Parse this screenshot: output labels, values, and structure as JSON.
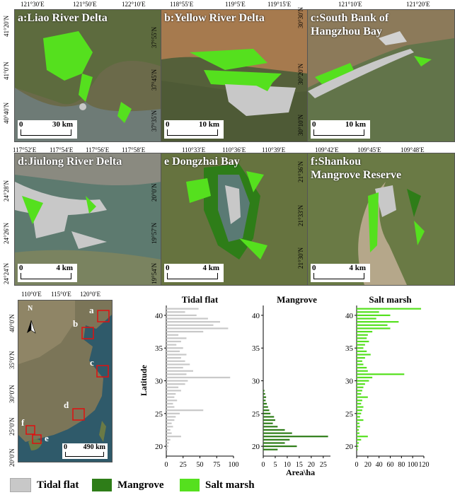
{
  "panels": [
    {
      "title": "a:Liao River Delta",
      "lon": [
        "121°30′E",
        "121°50′E",
        "122°10′E"
      ],
      "lat": [
        "41°20′N",
        "41°0′N",
        "40°40′N"
      ],
      "scale": [
        "0",
        "30 km"
      ]
    },
    {
      "title": "b:Yellow River Delta",
      "lon": [
        "118°55′E",
        "119°5′E",
        "119°15′E"
      ],
      "lat": [
        "37°55′N",
        "37°45′N",
        "37°35′N"
      ],
      "scale": [
        "0",
        "10 km"
      ]
    },
    {
      "title": "c:South Bank of\nHangzhou Bay",
      "lon": [
        "121°10′E",
        "121°20′E"
      ],
      "lat": [
        "30°30′N",
        "30°20′N",
        "30°10′N"
      ],
      "scale": [
        "0",
        "10 km"
      ]
    },
    {
      "title": "d:Jiulong River Delta",
      "lon": [
        "117°52′E",
        "117°54′E",
        "117°56′E",
        "117°58′E"
      ],
      "lat": [
        "24°28′N",
        "24°26′N",
        "24°24′N"
      ],
      "scale": [
        "0",
        "4 km"
      ]
    },
    {
      "title": "e Dongzhai Bay",
      "lon": [
        "110°33′E",
        "110°36′E",
        "110°39′E"
      ],
      "lat": [
        "20°0′N",
        "19°57′N",
        "19°54′N"
      ],
      "scale": [
        "0",
        "4 km"
      ]
    },
    {
      "title": "f:Shankou\nMangrove Reserve",
      "lon": [
        "109°42′E",
        "109°45′E",
        "109°48′E"
      ],
      "lat": [
        "21°36′N",
        "21°33′N",
        "21°30′N"
      ],
      "scale": [
        "0",
        "4 km"
      ]
    }
  ],
  "overview": {
    "lon": [
      "110°0′E",
      "115°0′E",
      "120°0′E"
    ],
    "lat": [
      "40°0′N",
      "35°0′N",
      "30°0′N",
      "25°0′N",
      "20°0′N"
    ],
    "north": "N",
    "scale": [
      "0",
      "490 km"
    ],
    "sites": [
      "a",
      "b",
      "c",
      "d",
      "e",
      "f"
    ]
  },
  "colors": {
    "tidal_flat": "#c8c8c8",
    "mangrove": "#2e7d18",
    "salt_marsh": "#55e01e",
    "water": "#5f7d74",
    "land": "#5a6b3c"
  },
  "chart_data": [
    {
      "type": "bar",
      "title": "Tidal flat",
      "orientation": "horizontal",
      "ylabel": "Latitude",
      "xticks": [
        "0",
        "25",
        "50",
        "75",
        "100"
      ],
      "xlim": [
        0,
        100
      ],
      "ylim": [
        18.5,
        41.5
      ],
      "yticks": [
        "20",
        "25",
        "30",
        "35",
        "40"
      ],
      "lat": [
        41,
        40.5,
        40,
        39.5,
        39,
        38.5,
        38,
        37.5,
        37,
        36.5,
        36,
        35.5,
        35,
        34.5,
        34,
        33.5,
        33,
        32.5,
        32,
        31.5,
        31,
        30.5,
        30,
        29.5,
        29,
        28.5,
        28,
        27.5,
        27,
        26.5,
        26,
        25.5,
        25,
        24.5,
        24,
        23.5,
        23,
        22.5,
        22,
        21.5,
        21,
        20.5,
        20,
        19.5
      ],
      "values": [
        48,
        28,
        45,
        62,
        80,
        70,
        92,
        55,
        18,
        30,
        22,
        15,
        25,
        20,
        30,
        22,
        28,
        35,
        25,
        40,
        30,
        95,
        32,
        28,
        18,
        22,
        14,
        12,
        16,
        10,
        12,
        55,
        20,
        14,
        12,
        8,
        10,
        6,
        8,
        22,
        6,
        4,
        3,
        2
      ]
    },
    {
      "type": "bar",
      "title": "Mangrove",
      "orientation": "horizontal",
      "xlabel": "Area\\ha",
      "xticks": [
        "0",
        "5",
        "10",
        "15",
        "20",
        "25"
      ],
      "xlim": [
        0,
        28
      ],
      "ylim": [
        18.5,
        41.5
      ],
      "yticks": [
        "20",
        "25",
        "30",
        "35",
        "40"
      ],
      "lat": [
        28.5,
        28,
        27.5,
        27,
        26.5,
        26,
        25.5,
        25,
        24.5,
        24,
        23.5,
        23,
        22.5,
        22,
        21.5,
        21,
        20.5,
        20,
        19.5
      ],
      "values": [
        0.5,
        0.8,
        1.2,
        1.0,
        1.5,
        2.0,
        2.5,
        3.0,
        4.5,
        5.0,
        4.0,
        6.0,
        9.0,
        12.0,
        27.0,
        11.0,
        9.0,
        14.0,
        6.0
      ]
    },
    {
      "type": "bar",
      "title": "Salt marsh",
      "orientation": "horizontal",
      "xticks": [
        "0",
        "20",
        "40",
        "60",
        "80",
        "100",
        "120"
      ],
      "xlim": [
        0,
        120
      ],
      "ylim": [
        18.5,
        41.5
      ],
      "yticks": [
        "20",
        "25",
        "30",
        "35",
        "40"
      ],
      "lat": [
        41,
        40.5,
        40,
        39.5,
        39,
        38.5,
        38,
        37.5,
        37,
        36.5,
        36,
        35.5,
        35,
        34.5,
        34,
        33.5,
        33,
        32.5,
        32,
        31.5,
        31,
        30.5,
        30,
        29.5,
        29,
        28.5,
        28,
        27.5,
        27,
        26.5,
        26,
        25.5,
        25,
        24.5,
        24,
        23.5,
        23,
        22.5,
        22,
        21.5,
        21,
        20.5,
        20,
        19.5
      ],
      "values": [
        115,
        40,
        60,
        35,
        75,
        55,
        60,
        28,
        20,
        18,
        22,
        15,
        12,
        18,
        25,
        15,
        10,
        12,
        18,
        20,
        85,
        28,
        22,
        15,
        12,
        10,
        8,
        20,
        10,
        8,
        12,
        10,
        8,
        6,
        12,
        5,
        6,
        4,
        5,
        20,
        8,
        4,
        3,
        2
      ]
    }
  ],
  "legend": [
    {
      "label": "Tidal flat",
      "color": "#c8c8c8"
    },
    {
      "label": "Mangrove",
      "color": "#2e7d18"
    },
    {
      "label": "Salt marsh",
      "color": "#55e01e"
    }
  ]
}
